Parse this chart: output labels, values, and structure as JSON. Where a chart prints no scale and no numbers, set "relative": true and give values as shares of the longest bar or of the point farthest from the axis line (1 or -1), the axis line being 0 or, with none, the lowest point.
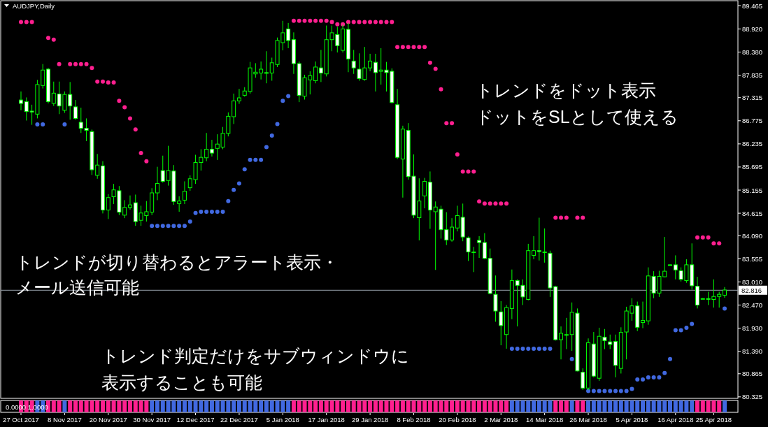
{
  "chart_data": [
    {
      "type": "candlestick",
      "title": "AUDJPY,Daily",
      "categories": [
        "27 Oct 2017",
        null,
        null,
        null,
        null,
        null,
        null,
        null,
        "8 Nov 2017",
        null,
        null,
        null,
        null,
        null,
        null,
        null,
        "20 Nov 2017",
        null,
        null,
        null,
        null,
        null,
        null,
        null,
        "30 Nov 2017",
        null,
        null,
        null,
        null,
        null,
        null,
        null,
        "12 Dec 2017",
        null,
        null,
        null,
        null,
        null,
        null,
        null,
        "22 Dec 2017",
        null,
        null,
        null,
        null,
        null,
        null,
        null,
        "5 Jan 2018",
        null,
        null,
        null,
        null,
        null,
        null,
        null,
        "17 Jan 2018",
        null,
        null,
        null,
        null,
        null,
        null,
        null,
        "29 Jan 2018",
        null,
        null,
        null,
        null,
        null,
        null,
        null,
        "8 Feb 2018",
        null,
        null,
        null,
        null,
        null,
        null,
        null,
        "20 Feb 2018",
        null,
        null,
        null,
        null,
        null,
        null,
        null,
        "2 Mar 2018",
        null,
        null,
        null,
        null,
        null,
        null,
        null,
        "14 Mar 2018",
        null,
        null,
        null,
        null,
        null,
        null,
        null,
        "26 Mar 2018",
        null,
        null,
        null,
        null,
        null,
        null,
        null,
        "5 Apr 2018",
        null,
        null,
        null,
        null,
        null,
        null,
        null,
        "16 Apr 2018",
        null,
        null,
        null,
        null,
        null,
        null,
        "25 Apr 2018",
        null,
        null
      ],
      "ohlc": [
        [
          87.26,
          87.46,
          87.02,
          87.18
        ],
        [
          87.22,
          87.32,
          86.78,
          86.99
        ],
        [
          87.0,
          87.15,
          86.68,
          86.98
        ],
        [
          86.93,
          87.73,
          86.83,
          87.62
        ],
        [
          87.6,
          88.1,
          87.53,
          87.96
        ],
        [
          87.98,
          88.01,
          87.18,
          87.22
        ],
        [
          87.18,
          87.69,
          87.12,
          87.42
        ],
        [
          87.4,
          87.69,
          86.93,
          87.12
        ],
        [
          87.02,
          87.46,
          86.96,
          87.39
        ],
        [
          87.39,
          87.68,
          86.8,
          87.12
        ],
        [
          87.1,
          87.26,
          86.8,
          86.83
        ],
        [
          86.74,
          87.08,
          86.49,
          86.6
        ],
        [
          86.6,
          86.83,
          86.3,
          86.55
        ],
        [
          86.52,
          86.57,
          85.51,
          85.63
        ],
        [
          85.5,
          86.0,
          85.42,
          85.74
        ],
        [
          85.72,
          85.83,
          84.61,
          84.69
        ],
        [
          84.69,
          85.06,
          84.48,
          84.98
        ],
        [
          85.0,
          85.3,
          84.83,
          85.16
        ],
        [
          85.14,
          85.25,
          84.57,
          84.64
        ],
        [
          84.57,
          84.92,
          84.5,
          84.75
        ],
        [
          84.75,
          85.03,
          84.7,
          84.81
        ],
        [
          84.86,
          85.05,
          84.32,
          84.42
        ],
        [
          84.45,
          84.79,
          84.32,
          84.62
        ],
        [
          84.56,
          84.9,
          84.42,
          84.65
        ],
        [
          84.64,
          85.2,
          84.57,
          85.09
        ],
        [
          85.09,
          85.7,
          84.92,
          85.31
        ],
        [
          85.61,
          85.96,
          85.33,
          85.36
        ],
        [
          85.38,
          86.19,
          85.26,
          85.61
        ],
        [
          85.6,
          85.74,
          84.81,
          84.89
        ],
        [
          84.84,
          85.01,
          84.65,
          84.9
        ],
        [
          84.92,
          85.36,
          84.83,
          85.13
        ],
        [
          85.21,
          85.5,
          85.14,
          85.42
        ],
        [
          85.4,
          85.98,
          85.3,
          85.8
        ],
        [
          85.8,
          86.11,
          85.61,
          85.92
        ],
        [
          85.91,
          86.49,
          85.83,
          86.11
        ],
        [
          86.11,
          86.33,
          85.94,
          86.02
        ],
        [
          86.13,
          86.46,
          85.86,
          86.23
        ],
        [
          86.16,
          86.63,
          86.11,
          86.48
        ],
        [
          86.48,
          86.97,
          86.41,
          86.88
        ],
        [
          86.87,
          87.41,
          86.7,
          87.24
        ],
        [
          87.24,
          87.52,
          87.17,
          87.31
        ],
        [
          87.37,
          87.56,
          87.34,
          87.47
        ],
        [
          87.46,
          88.15,
          87.41,
          88.01
        ],
        [
          87.87,
          88.12,
          87.78,
          87.91
        ],
        [
          87.89,
          88.16,
          87.74,
          87.98
        ],
        [
          87.9,
          88.4,
          87.65,
          87.89
        ],
        [
          87.89,
          88.25,
          87.71,
          88.13
        ],
        [
          88.09,
          88.72,
          88.03,
          88.65
        ],
        [
          88.6,
          89.11,
          88.42,
          88.83
        ],
        [
          88.92,
          89.06,
          88.47,
          88.65
        ],
        [
          88.67,
          88.84,
          87.87,
          88.11
        ],
        [
          88.11,
          88.16,
          87.21,
          87.37
        ],
        [
          87.35,
          87.85,
          87.27,
          87.78
        ],
        [
          87.73,
          87.93,
          87.39,
          87.83
        ],
        [
          87.71,
          88.16,
          87.65,
          88.03
        ],
        [
          88.01,
          88.43,
          87.68,
          87.89
        ],
        [
          87.87,
          89.0,
          87.81,
          88.67
        ],
        [
          88.67,
          89.0,
          88.4,
          88.83
        ],
        [
          88.79,
          88.97,
          88.37,
          88.53
        ],
        [
          88.42,
          89.02,
          88.37,
          88.92
        ],
        [
          88.91,
          89.06,
          87.91,
          88.22
        ],
        [
          88.17,
          88.43,
          87.87,
          88.01
        ],
        [
          87.98,
          88.35,
          87.71,
          87.76
        ],
        [
          87.74,
          88.5,
          87.71,
          88.01
        ],
        [
          88.01,
          88.34,
          87.93,
          88.17
        ],
        [
          88.14,
          88.34,
          87.46,
          87.9
        ],
        [
          87.93,
          88.47,
          87.62,
          87.96
        ],
        [
          87.96,
          88.15,
          87.46,
          87.9
        ],
        [
          87.93,
          88.0,
          87.18,
          87.2
        ],
        [
          87.15,
          87.52,
          85.88,
          85.92
        ],
        [
          85.88,
          86.66,
          84.98,
          86.58
        ],
        [
          86.55,
          86.72,
          85.4,
          85.47
        ],
        [
          85.48,
          85.99,
          84.5,
          84.57
        ],
        [
          84.51,
          85.43,
          83.98,
          84.9
        ],
        [
          85.02,
          85.44,
          84.73,
          85.36
        ],
        [
          85.34,
          85.59,
          84.25,
          84.69
        ],
        [
          84.65,
          84.89,
          83.29,
          84.76
        ],
        [
          84.71,
          84.79,
          84.02,
          84.23
        ],
        [
          84.23,
          84.64,
          83.87,
          83.99
        ],
        [
          83.99,
          84.5,
          83.95,
          84.29
        ],
        [
          84.27,
          84.79,
          84.19,
          84.56
        ],
        [
          84.52,
          84.84,
          83.96,
          84.06
        ],
        [
          84.04,
          84.07,
          83.5,
          83.71
        ],
        [
          83.71,
          83.83,
          83.24,
          83.7
        ],
        [
          83.98,
          84.08,
          83.57,
          83.93
        ],
        [
          83.93,
          84.15,
          83.54,
          83.56
        ],
        [
          83.56,
          83.79,
          82.72,
          82.74
        ],
        [
          82.72,
          83.16,
          82.08,
          82.33
        ],
        [
          82.31,
          82.56,
          81.53,
          81.99
        ],
        [
          81.78,
          82.47,
          81.45,
          82.41
        ],
        [
          82.39,
          83.3,
          82.14,
          83.04
        ],
        [
          83.04,
          83.07,
          81.97,
          82.93
        ],
        [
          82.93,
          83.07,
          82.47,
          82.66
        ],
        [
          82.6,
          83.9,
          82.58,
          83.74
        ],
        [
          83.63,
          84.08,
          83.54,
          83.74
        ],
        [
          83.74,
          84.51,
          83.51,
          83.72
        ],
        [
          83.71,
          84.26,
          83.46,
          83.7
        ],
        [
          83.68,
          83.74,
          82.66,
          82.87
        ],
        [
          82.9,
          82.92,
          81.64,
          81.66
        ],
        [
          81.66,
          81.97,
          81.2,
          81.81
        ],
        [
          81.78,
          82.17,
          81.44,
          81.78
        ],
        [
          81.78,
          82.53,
          81.4,
          82.3
        ],
        [
          82.28,
          82.39,
          80.92,
          80.93
        ],
        [
          80.9,
          80.99,
          80.49,
          80.53
        ],
        [
          80.53,
          81.69,
          80.48,
          81.59
        ],
        [
          81.56,
          81.84,
          80.78,
          80.81
        ],
        [
          80.76,
          81.94,
          80.7,
          81.74
        ],
        [
          81.72,
          81.91,
          81.44,
          81.64
        ],
        [
          81.61,
          81.78,
          81.44,
          81.55
        ],
        [
          81.62,
          81.78,
          80.78,
          81.06
        ],
        [
          80.99,
          81.95,
          80.87,
          81.83
        ],
        [
          81.84,
          82.43,
          81.2,
          82.33
        ],
        [
          82.28,
          82.63,
          82.1,
          82.45
        ],
        [
          82.45,
          82.55,
          81.86,
          81.95
        ],
        [
          82.06,
          82.55,
          81.93,
          82.11
        ],
        [
          82.1,
          83.35,
          82.01,
          83.15
        ],
        [
          83.14,
          83.26,
          82.63,
          82.75
        ],
        [
          82.75,
          83.27,
          82.66,
          83.14
        ],
        [
          83.13,
          84.06,
          83.12,
          83.26
        ],
        [
          83.41,
          83.42,
          83.4,
          83.41
        ],
        [
          83.41,
          83.63,
          83.07,
          83.29
        ],
        [
          83.27,
          83.35,
          83.02,
          83.07
        ],
        [
          83.04,
          83.54,
          82.99,
          83.41
        ],
        [
          83.41,
          83.91,
          82.83,
          82.92
        ],
        [
          82.91,
          83.13,
          82.39,
          82.47
        ],
        [
          82.62,
          82.63,
          82.61,
          82.62
        ],
        [
          82.62,
          82.78,
          82.47,
          82.61
        ],
        [
          82.6,
          83.07,
          82.41,
          82.67
        ],
        [
          82.67,
          82.78,
          82.41,
          82.72
        ],
        [
          82.7,
          82.89,
          82.64,
          82.82
        ]
      ],
      "series": [
        {
          "type": "scatter",
          "color": "#ff1f8f",
          "values": [
            89.08,
            89.08,
            89.08,
            null,
            null,
            88.71,
            88.67,
            88.1,
            null,
            88.1,
            88.1,
            88.1,
            88.1,
            88.01,
            87.69,
            87.69,
            87.67,
            87.67,
            87.24,
            87.09,
            86.83,
            86.57,
            86.02,
            85.83,
            null,
            null,
            null,
            null,
            null,
            null,
            null,
            null,
            null,
            null,
            null,
            null,
            null,
            null,
            null,
            null,
            null,
            null,
            null,
            null,
            null,
            null,
            null,
            null,
            null,
            null,
            89.11,
            89.11,
            89.11,
            89.11,
            89.11,
            89.11,
            89.11,
            89.08,
            89.03,
            89.03,
            89.08,
            89.08,
            89.08,
            89.08,
            89.08,
            89.08,
            89.08,
            89.08,
            89.08,
            88.5,
            88.5,
            88.5,
            88.5,
            88.5,
            88.5,
            88.13,
            87.99,
            87.51,
            86.72,
            86.72,
            85.99,
            85.59,
            85.59,
            85.59,
            84.89,
            84.84,
            84.84,
            84.84,
            84.84,
            84.84,
            null,
            null,
            null,
            null,
            null,
            null,
            null,
            null,
            84.51,
            84.51,
            84.51,
            null,
            84.51,
            84.51,
            null,
            null,
            null,
            null,
            null,
            null,
            null,
            null,
            null,
            null,
            null,
            null,
            null,
            null,
            null,
            null,
            null,
            null,
            null,
            null,
            84.05,
            84.05,
            84.05,
            83.91,
            83.91,
            null
          ]
        },
        {
          "type": "scatter",
          "color": "#4169e1",
          "values": [
            null,
            null,
            null,
            86.69,
            86.69,
            null,
            null,
            null,
            86.69,
            null,
            null,
            null,
            null,
            null,
            null,
            null,
            null,
            null,
            null,
            null,
            null,
            null,
            null,
            null,
            84.32,
            84.32,
            84.32,
            84.32,
            84.32,
            84.32,
            84.32,
            84.42,
            84.62,
            84.65,
            84.65,
            84.65,
            84.65,
            84.65,
            84.9,
            85.16,
            85.31,
            85.64,
            85.86,
            85.86,
            85.86,
            86.16,
            86.43,
            86.7,
            87.24,
            87.35,
            null,
            null,
            null,
            null,
            null,
            null,
            null,
            null,
            null,
            null,
            null,
            null,
            null,
            null,
            null,
            null,
            null,
            null,
            null,
            null,
            null,
            null,
            null,
            null,
            null,
            null,
            null,
            null,
            null,
            null,
            null,
            null,
            null,
            null,
            null,
            null,
            null,
            null,
            null,
            null,
            81.45,
            81.45,
            81.45,
            81.45,
            81.45,
            81.45,
            81.45,
            81.45,
            null,
            null,
            null,
            81.21,
            null,
            null,
            80.46,
            80.46,
            80.46,
            80.46,
            80.46,
            80.46,
            80.46,
            80.46,
            80.51,
            80.73,
            80.73,
            80.78,
            80.78,
            80.78,
            80.88,
            81.21,
            81.88,
            81.88,
            81.94,
            82.03,
            null,
            null,
            null,
            null,
            null,
            82.39
          ]
        }
      ],
      "ylim": [
        80.29,
        89.58
      ],
      "yticks": [
        89.465,
        {
          "value": 88.92,
          "label": "88.920"
        },
        {
          "value": 88.38,
          "label": "88.380"
        },
        87.835,
        87.315,
        86.775,
        86.235,
        85.695,
        85.155,
        84.615,
        {
          "value": 84.09,
          "label": "84.090"
        },
        83.555,
        {
          "value": 83.01,
          "label": "83.010"
        },
        {
          "value": 82.47,
          "label": "82.470"
        },
        {
          "value": 81.93,
          "label": "81.930"
        },
        {
          "value": 81.39,
          "label": "81.390"
        },
        80.865,
        80.325
      ],
      "ref_lines": [
        {
          "axis": "y",
          "value": 82.816,
          "label": "82.816",
          "color": "#9aa3ad",
          "line_style": "solid"
        }
      ],
      "annotations": [
        "トレンドをドット表示",
        "ドットをSLとして使える",
        "トレンドが切り替わるとアラート表示・",
        "メール送信可能",
        "トレンド判定だけをサブウィンドウに",
        "表示することも可能"
      ]
    },
    {
      "type": "bar",
      "title": "0.0000 1.0000",
      "relative": true,
      "categories": [
        null,
        null,
        null,
        null,
        null,
        null,
        null,
        null,
        null,
        null,
        null,
        null,
        null,
        null,
        null,
        null,
        null,
        null,
        null,
        null,
        null,
        null,
        null,
        null,
        null,
        null,
        null,
        null,
        null,
        null,
        null,
        null,
        null,
        null,
        null,
        null,
        null,
        null,
        null,
        null,
        null,
        null,
        null,
        null,
        null,
        null,
        null,
        null,
        null,
        null,
        null,
        null,
        null,
        null,
        null,
        null,
        null,
        null,
        null,
        null,
        null,
        null,
        null,
        null,
        null,
        null,
        null,
        null,
        null,
        null,
        null,
        null,
        null,
        null,
        null,
        null,
        null,
        null,
        null,
        null,
        null,
        null,
        null,
        null,
        null,
        null,
        null,
        null,
        null,
        null,
        null,
        null,
        null,
        null,
        null,
        null,
        null,
        null,
        null,
        null,
        null,
        null,
        null,
        null,
        null,
        null,
        null,
        null,
        null,
        null,
        null,
        null,
        null,
        null,
        null,
        null,
        null,
        null,
        null,
        null,
        null,
        null,
        null,
        null,
        null,
        null,
        null,
        null,
        null,
        null
      ],
      "values": [
        1,
        1,
        1,
        1,
        1,
        1,
        1,
        1,
        1,
        1,
        1,
        1,
        1,
        1,
        1,
        1,
        1,
        1,
        1,
        1,
        1,
        1,
        1,
        1,
        1,
        1,
        1,
        1,
        1,
        1,
        1,
        1,
        1,
        1,
        1,
        1,
        1,
        1,
        1,
        1,
        1,
        1,
        1,
        1,
        1,
        1,
        1,
        1,
        1,
        1,
        1,
        1,
        1,
        1,
        1,
        1,
        1,
        1,
        1,
        1,
        1,
        1,
        1,
        1,
        1,
        1,
        1,
        1,
        1,
        1,
        1,
        1,
        1,
        1,
        1,
        1,
        1,
        1,
        1,
        1,
        1,
        1,
        1,
        1,
        1,
        1,
        1,
        1,
        1,
        1,
        1,
        1,
        1,
        1,
        1,
        1,
        1,
        1,
        1,
        1,
        1,
        1,
        1,
        1,
        1,
        1,
        1,
        1,
        1,
        1,
        1,
        1,
        1,
        1,
        1,
        1,
        1,
        1,
        1,
        1,
        1,
        1,
        1,
        1,
        1,
        1,
        1,
        1,
        1,
        1
      ],
      "colors": [
        "#ff1f8f",
        "#ff1f8f",
        "#ff1f8f",
        "#4169e1",
        "#4169e1",
        "#ff1f8f",
        "#ff1f8f",
        "#ff1f8f",
        "#4169e1",
        "#ff1f8f",
        "#ff1f8f",
        "#ff1f8f",
        "#ff1f8f",
        "#ff1f8f",
        "#ff1f8f",
        "#ff1f8f",
        "#ff1f8f",
        "#ff1f8f",
        "#ff1f8f",
        "#ff1f8f",
        "#ff1f8f",
        "#ff1f8f",
        "#ff1f8f",
        "#ff1f8f",
        "#4169e1",
        "#4169e1",
        "#4169e1",
        "#4169e1",
        "#4169e1",
        "#4169e1",
        "#4169e1",
        "#4169e1",
        "#4169e1",
        "#4169e1",
        "#4169e1",
        "#4169e1",
        "#4169e1",
        "#4169e1",
        "#4169e1",
        "#4169e1",
        "#4169e1",
        "#4169e1",
        "#4169e1",
        "#4169e1",
        "#4169e1",
        "#4169e1",
        "#4169e1",
        "#4169e1",
        "#4169e1",
        "#4169e1",
        "#ff1f8f",
        "#ff1f8f",
        "#ff1f8f",
        "#ff1f8f",
        "#ff1f8f",
        "#ff1f8f",
        "#ff1f8f",
        "#ff1f8f",
        "#ff1f8f",
        "#ff1f8f",
        "#ff1f8f",
        "#ff1f8f",
        "#ff1f8f",
        "#ff1f8f",
        "#ff1f8f",
        "#ff1f8f",
        "#ff1f8f",
        "#ff1f8f",
        "#ff1f8f",
        "#ff1f8f",
        "#ff1f8f",
        "#ff1f8f",
        "#ff1f8f",
        "#ff1f8f",
        "#ff1f8f",
        "#ff1f8f",
        "#ff1f8f",
        "#ff1f8f",
        "#ff1f8f",
        "#ff1f8f",
        "#ff1f8f",
        "#ff1f8f",
        "#ff1f8f",
        "#ff1f8f",
        "#ff1f8f",
        "#ff1f8f",
        "#ff1f8f",
        "#ff1f8f",
        "#ff1f8f",
        "#ff1f8f",
        "#4169e1",
        "#4169e1",
        "#4169e1",
        "#4169e1",
        "#4169e1",
        "#4169e1",
        "#4169e1",
        "#4169e1",
        "#ff1f8f",
        "#ff1f8f",
        "#ff1f8f",
        "#4169e1",
        "#ff1f8f",
        "#ff1f8f",
        "#4169e1",
        "#4169e1",
        "#4169e1",
        "#4169e1",
        "#4169e1",
        "#4169e1",
        "#4169e1",
        "#4169e1",
        "#4169e1",
        "#4169e1",
        "#4169e1",
        "#4169e1",
        "#4169e1",
        "#4169e1",
        "#4169e1",
        "#4169e1",
        "#4169e1",
        "#4169e1",
        "#4169e1",
        "#4169e1",
        "#ff1f8f",
        "#ff1f8f",
        "#ff1f8f",
        "#ff1f8f",
        "#ff1f8f",
        "#4169e1"
      ]
    }
  ]
}
